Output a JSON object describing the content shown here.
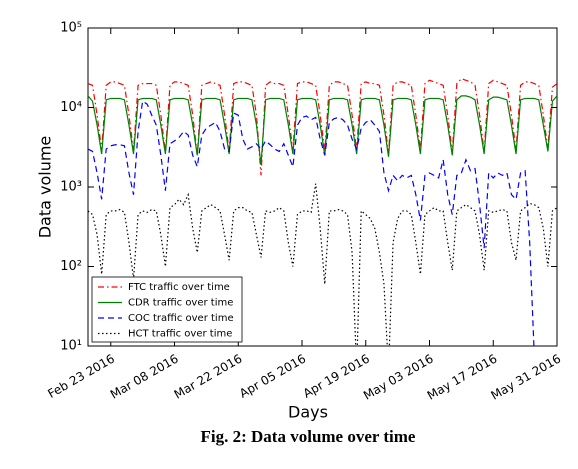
{
  "chart_data": {
    "type": "line",
    "title": "Fig. 2: Data volume over time",
    "xlabel": "Days",
    "ylabel": "Data volume",
    "log_y": true,
    "legend": "lower left",
    "x": [
      "2016-02-18",
      "2016-02-19",
      "2016-02-20",
      "2016-02-21",
      "2016-02-22",
      "2016-02-23",
      "2016-02-24",
      "2016-02-25",
      "2016-02-26",
      "2016-02-27",
      "2016-02-28",
      "2016-02-29",
      "2016-03-01",
      "2016-03-02",
      "2016-03-03",
      "2016-03-04",
      "2016-03-05",
      "2016-03-06",
      "2016-03-07",
      "2016-03-08",
      "2016-03-09",
      "2016-03-10",
      "2016-03-11",
      "2016-03-12",
      "2016-03-13",
      "2016-03-14",
      "2016-03-15",
      "2016-03-16",
      "2016-03-17",
      "2016-03-18",
      "2016-03-19",
      "2016-03-20",
      "2016-03-21",
      "2016-03-22",
      "2016-03-23",
      "2016-03-24",
      "2016-03-25",
      "2016-03-26",
      "2016-03-27",
      "2016-03-28",
      "2016-03-29",
      "2016-03-30",
      "2016-03-31",
      "2016-04-01",
      "2016-04-02",
      "2016-04-03",
      "2016-04-04",
      "2016-04-05",
      "2016-04-06",
      "2016-04-07",
      "2016-04-08",
      "2016-04-09",
      "2016-04-10",
      "2016-04-11",
      "2016-04-12",
      "2016-04-13",
      "2016-04-14",
      "2016-04-15",
      "2016-04-16",
      "2016-04-17",
      "2016-04-18",
      "2016-04-19",
      "2016-04-20",
      "2016-04-21",
      "2016-04-22",
      "2016-04-23",
      "2016-04-24",
      "2016-04-25",
      "2016-04-26",
      "2016-04-27",
      "2016-04-28",
      "2016-04-29",
      "2016-04-30",
      "2016-05-01",
      "2016-05-02",
      "2016-05-03",
      "2016-05-04",
      "2016-05-05",
      "2016-05-06",
      "2016-05-07",
      "2016-05-08",
      "2016-05-09",
      "2016-05-10",
      "2016-05-11",
      "2016-05-12",
      "2016-05-13",
      "2016-05-14",
      "2016-05-15",
      "2016-05-16",
      "2016-05-17",
      "2016-05-18",
      "2016-05-19",
      "2016-05-20",
      "2016-05-21",
      "2016-05-22",
      "2016-05-23",
      "2016-05-24",
      "2016-05-25",
      "2016-05-26",
      "2016-05-27",
      "2016-05-28",
      "2016-05-29",
      "2016-05-30",
      "2016-05-31"
    ],
    "xlim": [
      "2016-02-18",
      "2016-05-31"
    ],
    "xticks": [
      {
        "value": "2016-02-23",
        "label": "Feb 23 2016"
      },
      {
        "value": "2016-03-08",
        "label": "Mar 08 2016"
      },
      {
        "value": "2016-03-22",
        "label": "Mar 22 2016"
      },
      {
        "value": "2016-04-05",
        "label": "Apr 05 2016"
      },
      {
        "value": "2016-04-19",
        "label": "Apr 19 2016"
      },
      {
        "value": "2016-05-03",
        "label": "May 03 2016"
      },
      {
        "value": "2016-05-17",
        "label": "May 17 2016"
      },
      {
        "value": "2016-05-31",
        "label": "May 31 2016"
      }
    ],
    "ylim": [
      10,
      100000
    ],
    "yticks": [
      {
        "value": 10,
        "label": "10¹"
      },
      {
        "value": 100,
        "label": "10²"
      },
      {
        "value": 1000,
        "label": "10³"
      },
      {
        "value": 10000,
        "label": "10⁴"
      },
      {
        "value": 100000,
        "label": "10⁵"
      }
    ],
    "series": [
      {
        "name": "FTC traffic over time",
        "color": "#ff0000",
        "linestyle": "dashdot",
        "values": [
          20000,
          19000,
          8000,
          2900,
          19000,
          21000,
          21000,
          20000,
          19000,
          8000,
          2800,
          19000,
          20000,
          20000,
          20000,
          19000,
          8000,
          2700,
          19000,
          21000,
          21000,
          20000,
          19000,
          8000,
          2500,
          19000,
          20000,
          21000,
          20000,
          19000,
          8000,
          2800,
          20000,
          21000,
          21000,
          20000,
          19000,
          8000,
          1400,
          19000,
          21000,
          20000,
          20000,
          19000,
          8000,
          2900,
          20000,
          21000,
          21000,
          20000,
          19000,
          8000,
          2800,
          19000,
          21000,
          21000,
          20000,
          19000,
          8000,
          2900,
          20000,
          21000,
          20000,
          20000,
          19000,
          8000,
          2600,
          19000,
          21000,
          21000,
          20000,
          19000,
          8000,
          2900,
          20000,
          22000,
          21000,
          20000,
          19000,
          8000,
          2700,
          20000,
          23000,
          22000,
          21000,
          19000,
          8000,
          2800,
          20000,
          22000,
          21000,
          20000,
          19000,
          8000,
          2900,
          19000,
          21000,
          21000,
          20000,
          19000,
          8000,
          3000,
          18000,
          20000
        ]
      },
      {
        "name": "CDR traffic over time",
        "color": "#008000",
        "linestyle": "solid",
        "values": [
          14000,
          12000,
          6000,
          2600,
          12500,
          13000,
          13000,
          13000,
          12500,
          6000,
          2600,
          12500,
          13000,
          13000,
          13000,
          12500,
          6000,
          2600,
          12500,
          13000,
          13000,
          13000,
          12500,
          6000,
          2500,
          12500,
          13000,
          13000,
          13000,
          12500,
          6000,
          2600,
          12500,
          13000,
          13000,
          13000,
          12500,
          6000,
          1900,
          12500,
          13000,
          13000,
          13000,
          12500,
          6000,
          2600,
          12500,
          13000,
          13000,
          13000,
          12500,
          6000,
          2500,
          12500,
          13000,
          13000,
          13000,
          12500,
          6000,
          2600,
          12500,
          13000,
          13000,
          13000,
          12500,
          6000,
          2400,
          12500,
          13000,
          13000,
          13000,
          12500,
          6000,
          2600,
          12500,
          13000,
          13000,
          13000,
          12500,
          6000,
          2500,
          12500,
          14000,
          14000,
          13500,
          12500,
          6000,
          2600,
          12500,
          13500,
          13500,
          13000,
          12500,
          6000,
          2600,
          12500,
          13000,
          13000,
          13000,
          12500,
          6000,
          2800,
          12000,
          14000
        ]
      },
      {
        "name": "COC traffic over time",
        "color": "#0000ff",
        "linestyle": "dashed",
        "values": [
          3000,
          2800,
          1500,
          700,
          3000,
          3300,
          3400,
          3400,
          3300,
          1500,
          800,
          5000,
          12000,
          11000,
          8000,
          6000,
          2500,
          900,
          3500,
          3800,
          4200,
          5000,
          4500,
          2500,
          1800,
          4500,
          5500,
          6000,
          6500,
          5000,
          3000,
          2800,
          8500,
          8000,
          4000,
          3000,
          3200,
          3500,
          3000,
          3800,
          3400,
          3000,
          2800,
          3500,
          2500,
          1800,
          6000,
          7500,
          7800,
          7000,
          7500,
          4000,
          2500,
          6500,
          7200,
          7500,
          7000,
          6000,
          4000,
          3000,
          5500,
          6500,
          7000,
          6000,
          5000,
          1500,
          900,
          1400,
          1200,
          1400,
          1300,
          1400,
          800,
          380,
          1400,
          1500,
          1400,
          1300,
          2200,
          800,
          450,
          1400,
          1500,
          2200,
          1600,
          1700,
          600,
          170,
          1500,
          1300,
          1500,
          1400,
          1500,
          800,
          700,
          1500,
          1600,
          200,
          8,
          null,
          null,
          null,
          null,
          null
        ]
      },
      {
        "name": "HCT traffic over time",
        "color": "#000000",
        "linestyle": "dotted",
        "values": [
          500,
          450,
          250,
          80,
          450,
          500,
          500,
          520,
          480,
          200,
          70,
          450,
          500,
          480,
          520,
          500,
          250,
          100,
          550,
          600,
          700,
          600,
          800,
          300,
          150,
          500,
          550,
          600,
          550,
          500,
          250,
          120,
          500,
          550,
          550,
          500,
          480,
          250,
          130,
          500,
          480,
          500,
          550,
          500,
          200,
          100,
          450,
          500,
          500,
          480,
          1100,
          300,
          60,
          500,
          500,
          520,
          500,
          450,
          150,
          5,
          500,
          450,
          400,
          300,
          150,
          60,
          5,
          200,
          400,
          500,
          500,
          450,
          200,
          80,
          450,
          500,
          550,
          500,
          500,
          200,
          90,
          500,
          550,
          600,
          550,
          500,
          250,
          90,
          500,
          480,
          500,
          520,
          500,
          200,
          120,
          500,
          550,
          620,
          600,
          550,
          300,
          100,
          500,
          550
        ]
      }
    ]
  }
}
